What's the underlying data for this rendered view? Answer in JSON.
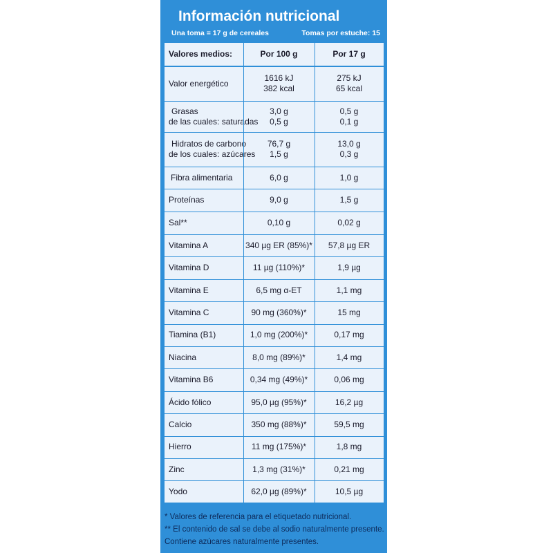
{
  "header": {
    "title": "Información nutricional",
    "serving": "Una toma = 17 g de cereales",
    "servings_per_box": "Tomas por estuche: 15"
  },
  "table": {
    "columns": [
      "Valores medios:",
      "Por 100 g",
      "Por 17 g"
    ],
    "rows": [
      [
        [
          "Valor energético"
        ],
        [
          "1616 kJ",
          "382 kcal"
        ],
        [
          "275 kJ",
          "65 kcal"
        ]
      ],
      [
        [
          "Grasas",
          "de las cuales: saturadas"
        ],
        [
          "3,0 g",
          "0,5 g"
        ],
        [
          "0,5 g",
          "0,1 g"
        ]
      ],
      [
        [
          "Hidratos de carbono",
          "de los cuales: azúcares"
        ],
        [
          "76,7 g",
          "1,5 g"
        ],
        [
          "13,0 g",
          "0,3 g"
        ]
      ],
      [
        [
          "Fibra alimentaria"
        ],
        [
          "6,0 g"
        ],
        [
          "1,0 g"
        ]
      ],
      [
        [
          "Proteínas"
        ],
        [
          "9,0 g"
        ],
        [
          "1,5 g"
        ]
      ],
      [
        [
          "Sal**"
        ],
        [
          "0,10 g"
        ],
        [
          "0,02 g"
        ]
      ],
      [
        [
          "Vitamina A"
        ],
        [
          "340 µg ER (85%)*"
        ],
        [
          "57,8 µg ER"
        ]
      ],
      [
        [
          "Vitamina D"
        ],
        [
          "11 µg (110%)*"
        ],
        [
          "1,9 µg"
        ]
      ],
      [
        [
          "Vitamina E"
        ],
        [
          "6,5 mg α-ET"
        ],
        [
          "1,1 mg"
        ]
      ],
      [
        [
          "Vitamina C"
        ],
        [
          "90 mg (360%)*"
        ],
        [
          "15 mg"
        ]
      ],
      [
        [
          "Tiamina (B1)"
        ],
        [
          "1,0 mg (200%)*"
        ],
        [
          "0,17 mg"
        ]
      ],
      [
        [
          "Niacina"
        ],
        [
          "8,0 mg (89%)*"
        ],
        [
          "1,4 mg"
        ]
      ],
      [
        [
          "Vitamina B6"
        ],
        [
          "0,34 mg (49%)*"
        ],
        [
          "0,06 mg"
        ]
      ],
      [
        [
          "Ácido fólico"
        ],
        [
          "95,0 µg (95%)*"
        ],
        [
          "16,2 µg"
        ]
      ],
      [
        [
          "Calcio"
        ],
        [
          "350 mg (88%)*"
        ],
        [
          "59,5 mg"
        ]
      ],
      [
        [
          "Hierro"
        ],
        [
          "11 mg (175%)*"
        ],
        [
          "1,8 mg"
        ]
      ],
      [
        [
          "Zinc"
        ],
        [
          "1,3 mg (31%)*"
        ],
        [
          "0,21 mg"
        ]
      ],
      [
        [
          "Yodo"
        ],
        [
          "62,0 µg (89%)*"
        ],
        [
          "10,5 µg"
        ]
      ]
    ]
  },
  "footer": [
    "* Valores de referencia para el etiquetado nutricional.",
    "** El contenido de sal se debe al sodio naturalmente presente.",
    "Contiene azúcares naturalmente presentes."
  ]
}
